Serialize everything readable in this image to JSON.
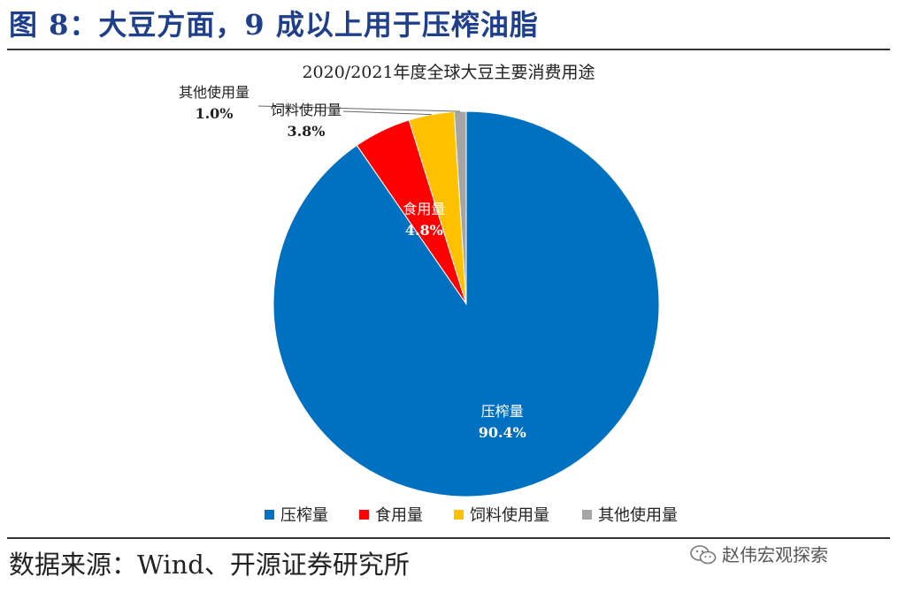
{
  "figure_title": "图 8：大豆方面，9 成以上用于压榨油脂",
  "source": "数据来源：Wind、开源证券研究所",
  "watermark": {
    "text": "赵伟宏观探索",
    "icon": "wechat-icon"
  },
  "chart_data": {
    "type": "pie",
    "title": "2020/2021年度全球大豆主要消费用途",
    "slices": [
      {
        "label": "压榨量",
        "value": 90.4,
        "display": "90.4%",
        "color": "#0070c0"
      },
      {
        "label": "食用量",
        "value": 4.8,
        "display": "4.8%",
        "color": "#ff0000"
      },
      {
        "label": "饲料使用量",
        "value": 3.8,
        "display": "3.8%",
        "color": "#ffc000"
      },
      {
        "label": "其他使用量",
        "value": 1.0,
        "display": "1.0%",
        "color": "#a5a5a5"
      }
    ],
    "legend": {
      "position": "bottom",
      "entries": [
        "压榨量",
        "食用量",
        "饲料使用量",
        "其他使用量"
      ]
    }
  }
}
